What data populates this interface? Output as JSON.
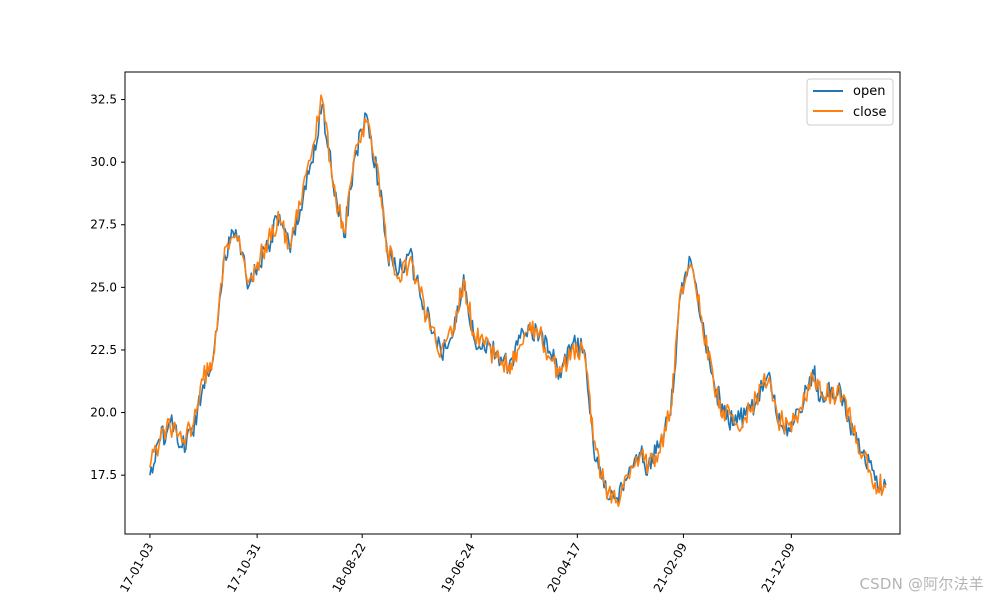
{
  "chart_data": {
    "type": "line",
    "title": "",
    "xlabel": "",
    "ylabel": "",
    "ylim": [
      15.15,
      33.6
    ],
    "yticks": [
      17.5,
      20.0,
      22.5,
      25.0,
      27.5,
      30.0,
      32.5
    ],
    "ytick_labels": [
      "17.5",
      "20.0",
      "22.5",
      "25.0",
      "27.5",
      "30.0",
      "32.5"
    ],
    "xticks": [
      "2017-01-03",
      "2017-10-31",
      "2018-08-22",
      "2019-06-24",
      "2020-04-17",
      "2021-02-09",
      "2021-12-09"
    ],
    "xtick_labels": [
      "17-01-03",
      "17-10-31",
      "18-08-22",
      "19-06-24",
      "20-04-17",
      "21-02-09",
      "21-12-09"
    ],
    "xlim": [
      "2016-10-25",
      "2022-10-10"
    ],
    "legend": {
      "placement": "top-right",
      "entries": [
        "open",
        "close"
      ]
    },
    "grid": false,
    "series": [
      {
        "name": "open",
        "color": "#1f77b4",
        "x": [
          "2017-01-03",
          "2017-02-01",
          "2017-03-01",
          "2017-04-03",
          "2017-05-02",
          "2017-06-01",
          "2017-07-03",
          "2017-08-01",
          "2017-09-01",
          "2017-10-09",
          "2017-11-01",
          "2017-12-01",
          "2018-01-02",
          "2018-02-01",
          "2018-03-01",
          "2018-04-02",
          "2018-05-02",
          "2018-06-01",
          "2018-07-02",
          "2018-08-01",
          "2018-09-03",
          "2018-10-08",
          "2018-11-01",
          "2018-12-03",
          "2019-01-02",
          "2019-02-01",
          "2019-03-01",
          "2019-04-01",
          "2019-05-06",
          "2019-06-03",
          "2019-07-01",
          "2019-08-01",
          "2019-09-02",
          "2019-10-08",
          "2019-11-01",
          "2019-12-02",
          "2020-01-02",
          "2020-02-03",
          "2020-03-02",
          "2020-04-01",
          "2020-05-06",
          "2020-06-01",
          "2020-07-01",
          "2020-08-03",
          "2020-09-01",
          "2020-10-09",
          "2020-11-02",
          "2020-12-01",
          "2021-01-04",
          "2021-02-01",
          "2021-03-01",
          "2021-04-01",
          "2021-05-06",
          "2021-06-01",
          "2021-07-01",
          "2021-08-02",
          "2021-09-01",
          "2021-10-08",
          "2021-11-01",
          "2021-12-01",
          "2022-01-04",
          "2022-02-07",
          "2022-03-01",
          "2022-04-01",
          "2022-05-05",
          "2022-06-01",
          "2022-07-01",
          "2022-08-01",
          "2022-08-31"
        ],
        "values": [
          17.5,
          18.9,
          19.6,
          18.6,
          19.2,
          21.1,
          22.6,
          26.3,
          27.3,
          25.1,
          25.9,
          26.7,
          27.9,
          26.4,
          28.1,
          30.0,
          32.3,
          29.2,
          27.0,
          30.2,
          31.9,
          29.2,
          26.3,
          25.6,
          26.4,
          24.6,
          23.5,
          22.3,
          23.2,
          25.5,
          23.0,
          22.5,
          22.4,
          21.8,
          22.7,
          23.5,
          23.1,
          22.3,
          21.4,
          22.7,
          22.5,
          18.7,
          17.0,
          16.6,
          17.3,
          18.4,
          17.8,
          18.6,
          19.9,
          24.7,
          26.1,
          23.6,
          21.2,
          20.0,
          19.5,
          19.9,
          20.4,
          21.6,
          19.6,
          19.4,
          20.0,
          21.7,
          20.6,
          21.0,
          20.6,
          19.1,
          18.5,
          17.3,
          17.1
        ]
      },
      {
        "name": "close",
        "color": "#ff7f0e",
        "x": [
          "2017-01-03",
          "2017-02-01",
          "2017-03-01",
          "2017-04-03",
          "2017-05-02",
          "2017-06-01",
          "2017-07-03",
          "2017-08-01",
          "2017-09-01",
          "2017-10-09",
          "2017-11-01",
          "2017-12-01",
          "2018-01-02",
          "2018-02-01",
          "2018-03-01",
          "2018-04-02",
          "2018-05-02",
          "2018-06-01",
          "2018-07-02",
          "2018-08-01",
          "2018-09-03",
          "2018-10-08",
          "2018-11-01",
          "2018-12-03",
          "2019-01-02",
          "2019-02-01",
          "2019-03-01",
          "2019-04-01",
          "2019-05-06",
          "2019-06-03",
          "2019-07-01",
          "2019-08-01",
          "2019-09-02",
          "2019-10-08",
          "2019-11-01",
          "2019-12-02",
          "2020-01-02",
          "2020-02-03",
          "2020-03-02",
          "2020-04-01",
          "2020-05-06",
          "2020-06-01",
          "2020-07-01",
          "2020-08-03",
          "2020-09-01",
          "2020-10-09",
          "2020-11-02",
          "2020-12-01",
          "2021-01-04",
          "2021-02-01",
          "2021-03-01",
          "2021-04-01",
          "2021-05-06",
          "2021-06-01",
          "2021-07-01",
          "2021-08-02",
          "2021-09-01",
          "2021-10-08",
          "2021-11-01",
          "2021-12-01",
          "2022-01-04",
          "2022-02-07",
          "2022-03-01",
          "2022-04-01",
          "2022-05-05",
          "2022-06-01",
          "2022-07-01",
          "2022-08-01",
          "2022-08-31"
        ],
        "values": [
          17.8,
          19.0,
          19.4,
          18.8,
          19.4,
          21.3,
          22.4,
          26.6,
          27.1,
          25.3,
          26.0,
          26.9,
          27.7,
          26.6,
          28.3,
          30.3,
          32.5,
          29.0,
          27.2,
          30.4,
          31.6,
          29.4,
          26.5,
          25.4,
          26.1,
          24.8,
          23.3,
          22.5,
          23.4,
          25.3,
          23.2,
          22.7,
          22.2,
          21.9,
          22.5,
          23.3,
          23.2,
          22.1,
          21.6,
          22.5,
          22.4,
          18.9,
          17.2,
          16.4,
          17.5,
          18.2,
          17.9,
          18.4,
          20.1,
          24.9,
          25.9,
          23.8,
          21.0,
          20.1,
          19.6,
          19.8,
          20.6,
          21.4,
          19.7,
          19.5,
          20.2,
          21.5,
          20.8,
          20.8,
          20.7,
          19.2,
          18.3,
          17.2,
          17.0
        ]
      }
    ]
  },
  "watermark": "CSDN @阿尔法羊"
}
